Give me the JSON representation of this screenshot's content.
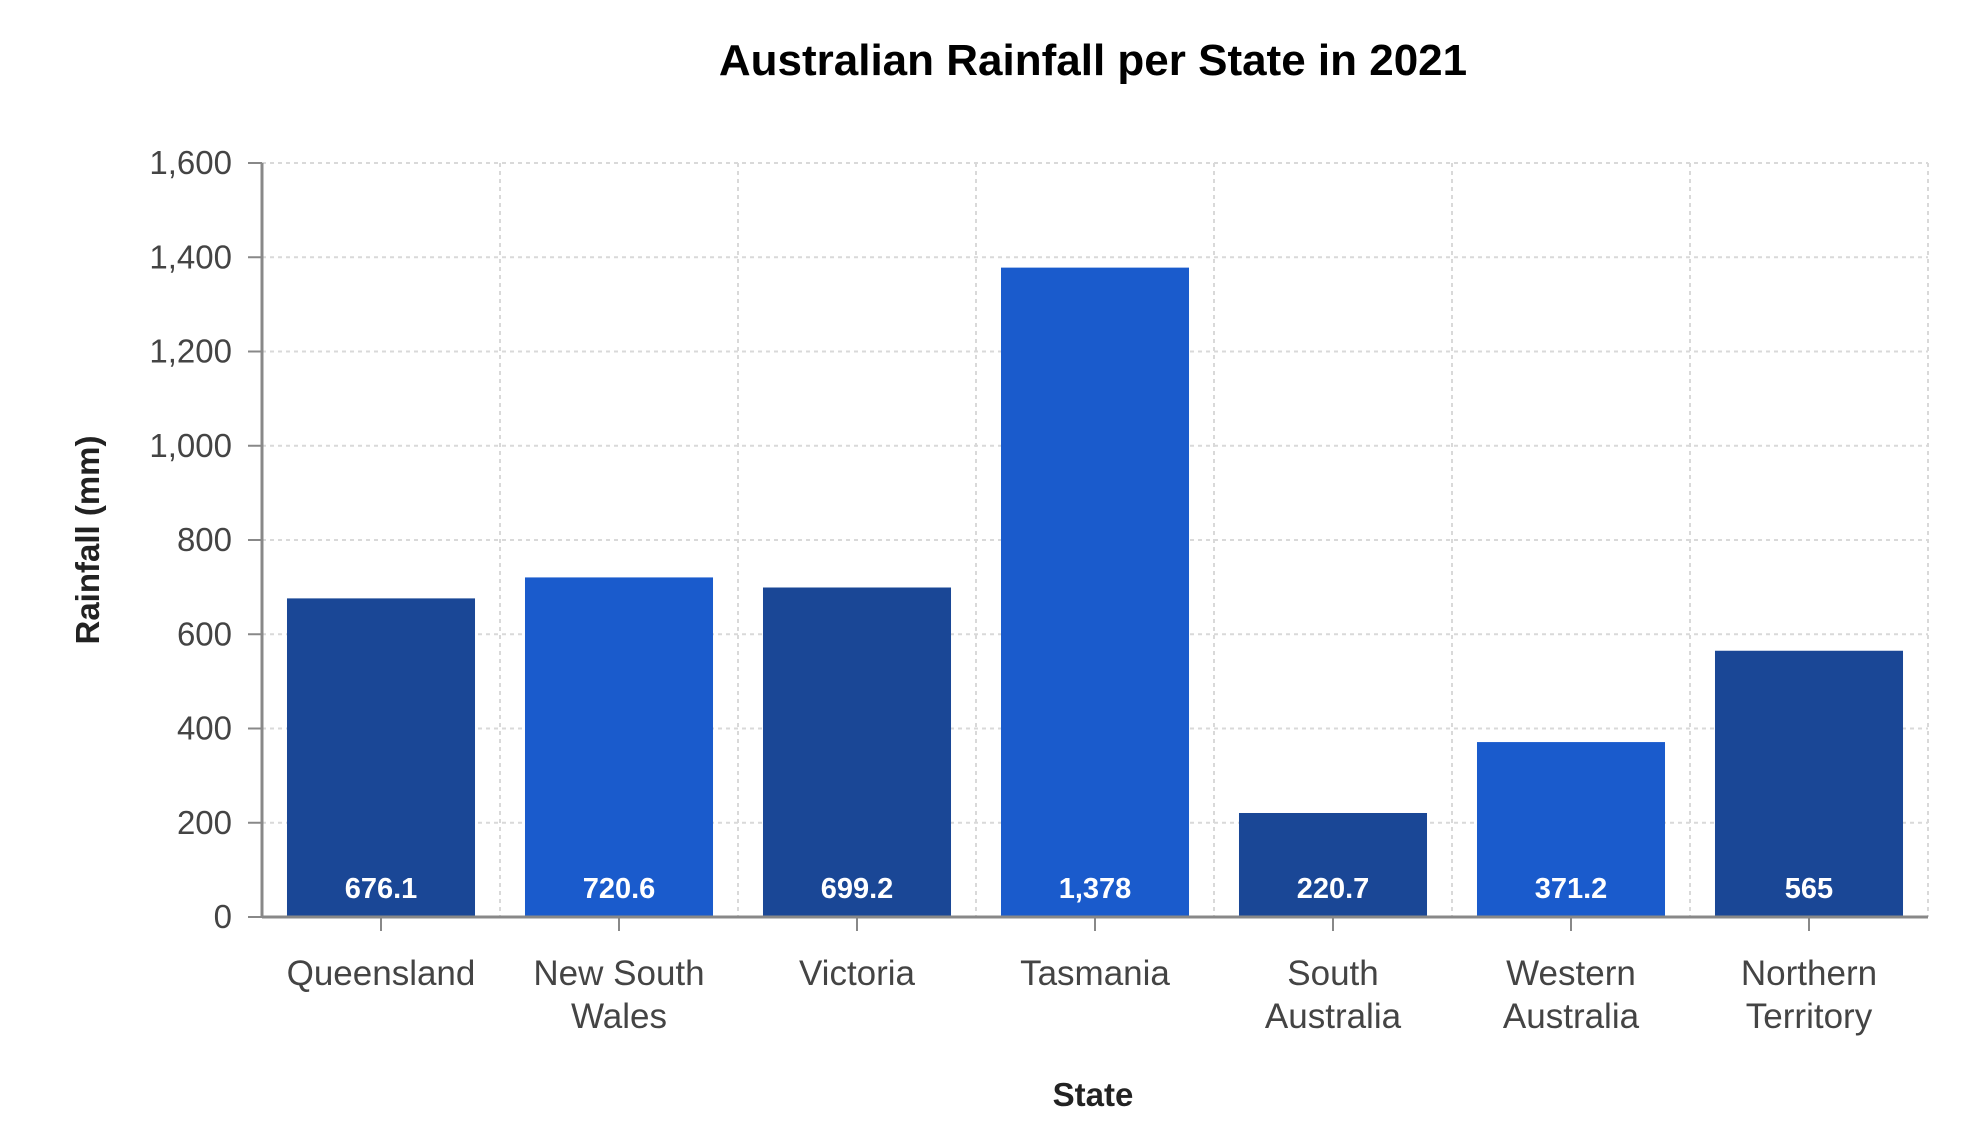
{
  "chart_data": {
    "type": "bar",
    "title": "Australian Rainfall per State in 2021",
    "xlabel": "State",
    "ylabel": "Rainfall (mm)",
    "ylim": [
      0,
      1600
    ],
    "yticks": [
      "0",
      "200",
      "400",
      "600",
      "800",
      "1,000",
      "1,200",
      "1,400",
      "1,600"
    ],
    "ytick_values": [
      0,
      200,
      400,
      600,
      800,
      1000,
      1200,
      1400,
      1600
    ],
    "categories": [
      [
        "Queensland"
      ],
      [
        "New South",
        "Wales"
      ],
      [
        "Victoria"
      ],
      [
        "Tasmania"
      ],
      [
        "South",
        "Australia"
      ],
      [
        "Western",
        "Australia"
      ],
      [
        "Northern",
        "Territory"
      ]
    ],
    "values": [
      676.1,
      720.6,
      699.2,
      1378,
      220.7,
      371.2,
      565
    ],
    "value_labels": [
      "676.1",
      "720.6",
      "699.2",
      "1,378",
      "220.7",
      "371.2",
      "565"
    ],
    "bar_colors": [
      "#1a4796",
      "#1a5bcc",
      "#1a4796",
      "#1a5bcc",
      "#1a4796",
      "#1a5bcc",
      "#1a4796"
    ],
    "grid": true,
    "legend": "none"
  }
}
